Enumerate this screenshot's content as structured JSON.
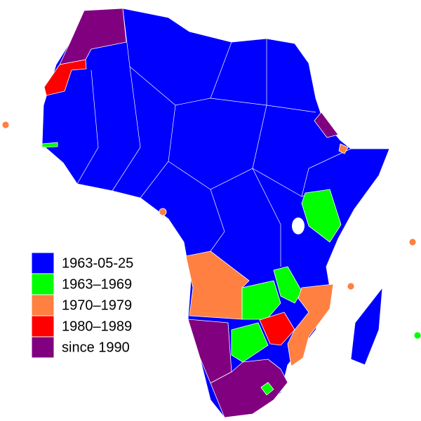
{
  "legend": {
    "items": [
      {
        "label": "1963-05-25",
        "color": "#0000ff"
      },
      {
        "label": "1963–1969",
        "color": "#00ff00"
      },
      {
        "label": "1970–1979",
        "color": "#ff8040"
      },
      {
        "label": "1980–1989",
        "color": "#ff0000"
      },
      {
        "label": "since 1990",
        "color": "#800080"
      }
    ]
  }
}
